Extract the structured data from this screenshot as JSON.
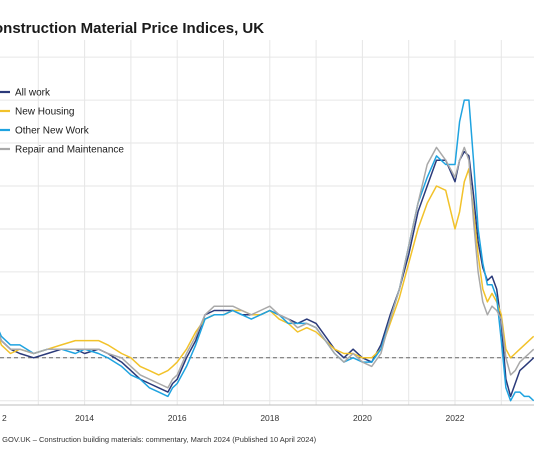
{
  "title": "onstruction Material Price Indices, UK",
  "source": ": GOV.UK – Construction building materials: commentary, March 2024 (Published 10 April 2024)",
  "chart_data": {
    "type": "line",
    "title": "onstruction Material Price Indices, UK",
    "xlabel": "",
    "ylabel": "",
    "x_ticks": [
      "2",
      "2014",
      "2016",
      "2018",
      "2020",
      "2022"
    ],
    "xlim": [
      2012.0,
      2023.7
    ],
    "ylim": [
      -1.1,
      7.4
    ],
    "grid": true,
    "legend_position": "top-left",
    "reference_line": 0,
    "series": [
      {
        "name": "All work",
        "color": "#2b3a7a",
        "x": [
          2012.0,
          2012.2,
          2012.4,
          2012.6,
          2012.9,
          2013.2,
          2013.5,
          2013.8,
          2014.0,
          2014.3,
          2014.5,
          2014.8,
          2015.0,
          2015.2,
          2015.4,
          2015.6,
          2015.8,
          2015.9,
          2016.0,
          2016.2,
          2016.4,
          2016.6,
          2016.8,
          2017.0,
          2017.2,
          2017.4,
          2017.6,
          2017.8,
          2018.0,
          2018.2,
          2018.4,
          2018.6,
          2018.8,
          2019.0,
          2019.2,
          2019.4,
          2019.6,
          2019.8,
          2020.0,
          2020.2,
          2020.4,
          2020.6,
          2020.8,
          2021.0,
          2021.2,
          2021.4,
          2021.6,
          2021.8,
          2022.0,
          2022.1,
          2022.2,
          2022.3,
          2022.4,
          2022.5,
          2022.6,
          2022.7,
          2022.8,
          2022.9,
          2023.0,
          2023.1,
          2023.2,
          2023.3,
          2023.4,
          2023.5,
          2023.6,
          2023.7
        ],
        "values": [
          1.0,
          0.4,
          0.2,
          0.1,
          0.0,
          0.1,
          0.2,
          0.2,
          0.1,
          0.2,
          0.1,
          -0.1,
          -0.3,
          -0.5,
          -0.6,
          -0.7,
          -0.8,
          -0.6,
          -0.5,
          0.0,
          0.4,
          1.0,
          1.1,
          1.1,
          1.1,
          1.0,
          1.0,
          1.0,
          1.1,
          1.0,
          0.9,
          0.8,
          0.9,
          0.8,
          0.5,
          0.2,
          0.0,
          0.2,
          0.0,
          -0.1,
          0.3,
          1.0,
          1.6,
          2.4,
          3.4,
          4.0,
          4.6,
          4.6,
          4.1,
          4.6,
          4.8,
          4.7,
          3.8,
          2.7,
          2.1,
          1.8,
          1.9,
          1.6,
          0.8,
          -0.5,
          -0.9,
          -0.6,
          -0.3,
          -0.2,
          -0.1,
          0.0
        ]
      },
      {
        "name": "New Housing",
        "color": "#f2c22a",
        "x": [
          2012.0,
          2012.2,
          2012.4,
          2012.6,
          2012.9,
          2013.2,
          2013.5,
          2013.8,
          2014.0,
          2014.3,
          2014.5,
          2014.8,
          2015.0,
          2015.2,
          2015.4,
          2015.6,
          2015.8,
          2015.9,
          2016.0,
          2016.2,
          2016.4,
          2016.6,
          2016.8,
          2017.0,
          2017.2,
          2017.4,
          2017.6,
          2017.8,
          2018.0,
          2018.2,
          2018.4,
          2018.6,
          2018.8,
          2019.0,
          2019.2,
          2019.4,
          2019.6,
          2019.8,
          2020.0,
          2020.2,
          2020.4,
          2020.6,
          2020.8,
          2021.0,
          2021.2,
          2021.4,
          2021.6,
          2021.8,
          2022.0,
          2022.1,
          2022.2,
          2022.3,
          2022.4,
          2022.5,
          2022.6,
          2022.7,
          2022.8,
          2022.9,
          2023.0,
          2023.1,
          2023.2,
          2023.3,
          2023.4,
          2023.5,
          2023.6,
          2023.7
        ],
        "values": [
          1.0,
          0.3,
          0.1,
          0.2,
          0.1,
          0.2,
          0.3,
          0.4,
          0.4,
          0.4,
          0.3,
          0.1,
          0.0,
          -0.2,
          -0.3,
          -0.4,
          -0.3,
          -0.2,
          -0.1,
          0.2,
          0.6,
          0.9,
          1.0,
          1.0,
          1.1,
          1.1,
          1.0,
          1.0,
          1.1,
          0.9,
          0.8,
          0.6,
          0.7,
          0.6,
          0.4,
          0.2,
          0.1,
          0.1,
          0.0,
          0.0,
          0.2,
          0.8,
          1.4,
          2.2,
          3.0,
          3.6,
          4.0,
          3.9,
          3.0,
          3.4,
          4.1,
          4.4,
          3.4,
          2.4,
          1.6,
          1.3,
          1.5,
          1.3,
          1.0,
          0.2,
          0.0,
          0.1,
          0.2,
          0.3,
          0.4,
          0.5
        ]
      },
      {
        "name": "Other New Work",
        "color": "#1fa3e0",
        "x": [
          2012.0,
          2012.2,
          2012.4,
          2012.6,
          2012.9,
          2013.2,
          2013.5,
          2013.8,
          2014.0,
          2014.3,
          2014.5,
          2014.8,
          2015.0,
          2015.2,
          2015.4,
          2015.6,
          2015.8,
          2015.9,
          2016.0,
          2016.2,
          2016.4,
          2016.6,
          2016.8,
          2017.0,
          2017.2,
          2017.4,
          2017.6,
          2017.8,
          2018.0,
          2018.2,
          2018.4,
          2018.6,
          2018.8,
          2019.0,
          2019.2,
          2019.4,
          2019.6,
          2019.8,
          2020.0,
          2020.2,
          2020.4,
          2020.6,
          2020.8,
          2021.0,
          2021.2,
          2021.4,
          2021.6,
          2021.8,
          2022.0,
          2022.1,
          2022.2,
          2022.3,
          2022.4,
          2022.5,
          2022.6,
          2022.7,
          2022.8,
          2022.9,
          2023.0,
          2023.1,
          2023.2,
          2023.3,
          2023.4,
          2023.5,
          2023.6,
          2023.7
        ],
        "values": [
          1.0,
          0.5,
          0.3,
          0.3,
          0.1,
          0.2,
          0.2,
          0.1,
          0.2,
          0.1,
          0.0,
          -0.2,
          -0.4,
          -0.5,
          -0.7,
          -0.8,
          -0.9,
          -0.7,
          -0.6,
          -0.2,
          0.3,
          0.9,
          1.0,
          1.0,
          1.1,
          1.0,
          0.9,
          1.0,
          1.1,
          1.0,
          0.8,
          0.8,
          0.8,
          0.7,
          0.4,
          0.1,
          -0.1,
          0.0,
          -0.1,
          -0.1,
          0.2,
          0.9,
          1.6,
          2.6,
          3.6,
          4.2,
          4.7,
          4.5,
          4.5,
          5.5,
          6.0,
          6.0,
          4.6,
          3.0,
          2.2,
          1.7,
          1.7,
          1.4,
          0.4,
          -0.7,
          -1.0,
          -0.8,
          -0.8,
          -0.9,
          -0.9,
          -1.0
        ]
      },
      {
        "name": "Repair and Maintenance",
        "color": "#a9a9a9",
        "x": [
          2012.0,
          2012.2,
          2012.4,
          2012.6,
          2012.9,
          2013.2,
          2013.5,
          2013.8,
          2014.0,
          2014.3,
          2014.5,
          2014.8,
          2015.0,
          2015.2,
          2015.4,
          2015.6,
          2015.8,
          2015.9,
          2016.0,
          2016.2,
          2016.4,
          2016.6,
          2016.8,
          2017.0,
          2017.2,
          2017.4,
          2017.6,
          2017.8,
          2018.0,
          2018.2,
          2018.4,
          2018.6,
          2018.8,
          2019.0,
          2019.2,
          2019.4,
          2019.6,
          2019.8,
          2020.0,
          2020.2,
          2020.4,
          2020.6,
          2020.8,
          2021.0,
          2021.2,
          2021.4,
          2021.6,
          2021.8,
          2022.0,
          2022.1,
          2022.2,
          2022.3,
          2022.4,
          2022.5,
          2022.6,
          2022.7,
          2022.8,
          2022.9,
          2023.0,
          2023.1,
          2023.2,
          2023.3,
          2023.4,
          2023.5,
          2023.6,
          2023.7
        ],
        "values": [
          1.0,
          0.4,
          0.2,
          0.2,
          0.1,
          0.2,
          0.2,
          0.2,
          0.2,
          0.2,
          0.1,
          0.0,
          -0.2,
          -0.4,
          -0.5,
          -0.6,
          -0.7,
          -0.5,
          -0.4,
          0.1,
          0.5,
          1.0,
          1.2,
          1.2,
          1.2,
          1.1,
          1.0,
          1.1,
          1.2,
          1.0,
          0.9,
          0.7,
          0.8,
          0.7,
          0.4,
          0.1,
          -0.1,
          0.1,
          -0.1,
          -0.2,
          0.1,
          0.9,
          1.6,
          2.6,
          3.6,
          4.5,
          4.9,
          4.6,
          4.2,
          4.6,
          4.9,
          4.6,
          3.2,
          2.0,
          1.3,
          1.0,
          1.2,
          1.1,
          0.9,
          0.0,
          -0.4,
          -0.3,
          -0.1,
          0.0,
          0.1,
          0.2
        ]
      }
    ]
  }
}
